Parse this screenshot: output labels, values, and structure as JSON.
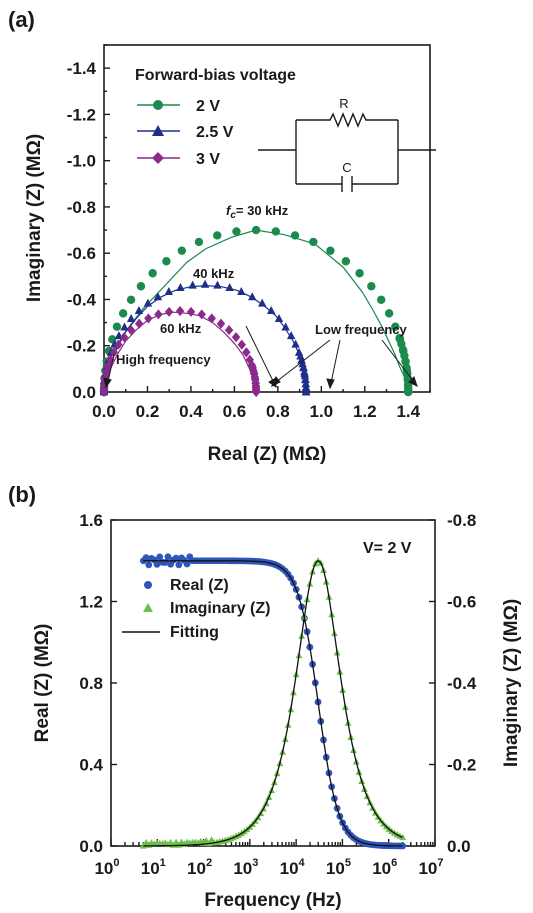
{
  "chart_data": [
    {
      "panel": "(a)",
      "type": "scatter",
      "xlabel": "Real (Z) (MΩ)",
      "ylabel": "Imaginary (Z) (MΩ)",
      "xlim": [
        0.0,
        1.5
      ],
      "ylim": [
        0.0,
        -1.5
      ],
      "x_ticks": [
        "0.0",
        "0.2",
        "0.4",
        "0.6",
        "0.8",
        "1.0",
        "1.2",
        "1.4"
      ],
      "y_ticks": [
        "0.0",
        "-0.2",
        "-0.4",
        "-0.6",
        "-0.8",
        "-1.0",
        "-1.2",
        "-1.4"
      ],
      "legend_title": "Forward-bias voltage",
      "legend_position": "top-left",
      "series": [
        {
          "name": "2 V",
          "color": "#1b8a4c",
          "marker": "circle",
          "R": 1.4,
          "points": 38,
          "values": [
            [
              0.0,
              0.0
            ],
            [
              0.003,
              -0.05
            ],
            [
              0.01,
              -0.1
            ],
            [
              0.025,
              -0.14
            ],
            [
              0.06,
              -0.2
            ],
            [
              0.09,
              -0.25
            ],
            [
              0.13,
              -0.3
            ],
            [
              0.18,
              -0.36
            ],
            [
              0.24,
              -0.42
            ],
            [
              0.3,
              -0.48
            ],
            [
              0.38,
              -0.56
            ],
            [
              0.47,
              -0.62
            ],
            [
              0.59,
              -0.67
            ],
            [
              0.7,
              -0.7
            ],
            [
              0.83,
              -0.68
            ],
            [
              0.97,
              -0.64
            ],
            [
              1.1,
              -0.54
            ],
            [
              1.19,
              -0.43
            ],
            [
              1.24,
              -0.35
            ],
            [
              1.28,
              -0.28
            ],
            [
              1.31,
              -0.22
            ],
            [
              1.34,
              -0.16
            ],
            [
              1.36,
              -0.11
            ],
            [
              1.38,
              -0.07
            ],
            [
              1.39,
              -0.04
            ],
            [
              1.4,
              -0.02
            ],
            [
              1.4,
              0.0
            ]
          ]
        },
        {
          "name": "2.5 V",
          "color": "#1f2e8a",
          "marker": "triangle",
          "R": 0.93,
          "points": 40,
          "values": [
            [
              0.0,
              0.0
            ],
            [
              0.01,
              -0.06
            ],
            [
              0.03,
              -0.12
            ],
            [
              0.06,
              -0.19
            ],
            [
              0.1,
              -0.26
            ],
            [
              0.15,
              -0.32
            ],
            [
              0.2,
              -0.37
            ],
            [
              0.26,
              -0.41
            ],
            [
              0.33,
              -0.44
            ],
            [
              0.4,
              -0.455
            ],
            [
              0.47,
              -0.46
            ],
            [
              0.54,
              -0.455
            ],
            [
              0.61,
              -0.44
            ],
            [
              0.68,
              -0.41
            ],
            [
              0.74,
              -0.37
            ],
            [
              0.79,
              -0.33
            ],
            [
              0.83,
              -0.28
            ],
            [
              0.87,
              -0.22
            ],
            [
              0.9,
              -0.16
            ],
            [
              0.92,
              -0.1
            ],
            [
              0.93,
              -0.05
            ],
            [
              0.93,
              0.0
            ]
          ]
        },
        {
          "name": "3 V",
          "color": "#8a2a8a",
          "marker": "diamond",
          "R": 0.7,
          "points": 34,
          "values": [
            [
              0.0,
              0.0
            ],
            [
              0.01,
              -0.05
            ],
            [
              0.03,
              -0.1
            ],
            [
              0.06,
              -0.16
            ],
            [
              0.1,
              -0.22
            ],
            [
              0.15,
              -0.27
            ],
            [
              0.2,
              -0.31
            ],
            [
              0.26,
              -0.335
            ],
            [
              0.32,
              -0.345
            ],
            [
              0.38,
              -0.34
            ],
            [
              0.44,
              -0.33
            ],
            [
              0.5,
              -0.3
            ],
            [
              0.55,
              -0.26
            ],
            [
              0.6,
              -0.21
            ],
            [
              0.64,
              -0.16
            ],
            [
              0.67,
              -0.1
            ],
            [
              0.69,
              -0.05
            ],
            [
              0.7,
              0.0
            ]
          ]
        }
      ],
      "annotations": [
        {
          "id": "fc30",
          "prefix": "f",
          "sub": "c",
          "text": "= 30 kHz"
        },
        {
          "id": "f40",
          "text": "40 kHz"
        },
        {
          "id": "f60",
          "text": "60 kHz"
        },
        {
          "id": "high",
          "text": "High frequency"
        },
        {
          "id": "low",
          "text": "Low frequency"
        }
      ],
      "circuit": {
        "resistor_label": "R",
        "capacitor_label": "C"
      }
    },
    {
      "panel": "(b)",
      "type": "scatter",
      "xlabel": "Frequency (Hz)",
      "ylabel": "Real (Z) (MΩ)",
      "ylabel_right": "Imaginary (Z) (MΩ)",
      "xscale": "log",
      "xlim": [
        1,
        10000000
      ],
      "ylim": [
        0.0,
        1.6
      ],
      "ylim_right": [
        0.0,
        -0.8
      ],
      "x_ticks": [
        {
          "b": "10",
          "e": "0"
        },
        {
          "b": "10",
          "e": "1"
        },
        {
          "b": "10",
          "e": "2"
        },
        {
          "b": "10",
          "e": "3"
        },
        {
          "b": "10",
          "e": "4"
        },
        {
          "b": "10",
          "e": "5"
        },
        {
          "b": "10",
          "e": "6"
        },
        {
          "b": "10",
          "e": "7"
        }
      ],
      "y_ticks": [
        "0.0",
        "0.4",
        "0.8",
        "1.2",
        "1.6"
      ],
      "y_ticks_right": [
        "0.0",
        "-0.2",
        "-0.4",
        "-0.6",
        "-0.8"
      ],
      "condition": "V= 2 V",
      "legend_position": "left",
      "R": 1.4,
      "fc": 30000,
      "freq_range": [
        5,
        2000000
      ],
      "series": [
        {
          "name": "Real (Z)",
          "color": "#2f55b8",
          "marker": "circle",
          "axis": "left"
        },
        {
          "name": "Imaginary (Z)",
          "color": "#6cc04a",
          "marker": "triangle",
          "axis": "right"
        },
        {
          "name": "Fitting",
          "color": "#111111",
          "marker": "line"
        }
      ]
    }
  ]
}
